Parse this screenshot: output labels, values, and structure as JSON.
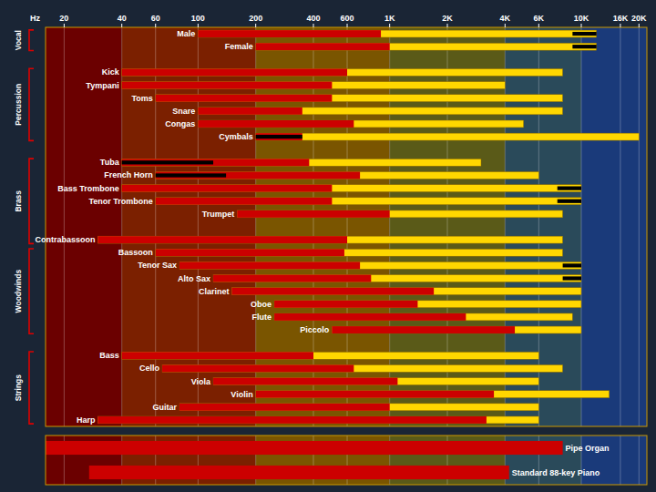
{
  "chart_data": [
    {
      "type": "bar",
      "orientation": "horizontal",
      "log": "x",
      "x_label": "Hz",
      "xlim": [
        16,
        22000
      ],
      "xticks": [
        20,
        40,
        60,
        100,
        200,
        400,
        600,
        {
          "value": 1000,
          "label": "1K"
        },
        {
          "value": 2000,
          "label": "2K"
        },
        {
          "value": 4000,
          "label": "4K"
        },
        {
          "value": 6000,
          "label": "6K"
        },
        {
          "value": 10000,
          "label": "10K"
        },
        {
          "value": 16000,
          "label": "16K"
        },
        {
          "value": 20000,
          "label": "20K"
        }
      ],
      "grid": true,
      "categories": [
        "Male",
        "Female",
        null,
        "Kick",
        "Tympani",
        "Toms",
        "Snare",
        "Congas",
        "Cymbals",
        null,
        "Tuba",
        "French Horn",
        "Bass Trombone",
        "Tenor Trombone",
        "Trumpet",
        null,
        "Contrabassoon",
        "Bassoon",
        "Tenor Sax",
        "Alto Sax",
        "Clarinet",
        "Oboe",
        "Flute",
        "Piccolo",
        null,
        "Bass",
        "Cello",
        "Viola",
        "Violin",
        "Guitar",
        "Harp"
      ],
      "series": [
        {
          "color": "#FFD700",
          "low": [
            100,
            200,
            null,
            40,
            40,
            60,
            100,
            100,
            200,
            null,
            40,
            60,
            40,
            60,
            160,
            null,
            30,
            60,
            80,
            120,
            150,
            250,
            250,
            500,
            null,
            40,
            65,
            120,
            200,
            80,
            30
          ],
          "values": [
            12000,
            12000,
            null,
            8000,
            4000,
            8000,
            8000,
            5000,
            20000,
            null,
            3000,
            6000,
            10000,
            10000,
            8000,
            null,
            8000,
            8000,
            10000,
            10000,
            10000,
            10000,
            9000,
            10000,
            null,
            6000,
            8000,
            6000,
            14000,
            6000,
            6000
          ]
        },
        {
          "color": "#CC0000",
          "low": [
            100,
            200,
            null,
            40,
            40,
            60,
            100,
            100,
            200,
            null,
            40,
            60,
            40,
            60,
            160,
            null,
            30,
            60,
            80,
            120,
            150,
            250,
            250,
            500,
            null,
            40,
            65,
            120,
            200,
            80,
            30
          ],
          "values": [
            900,
            1000,
            null,
            600,
            500,
            500,
            350,
            650,
            350,
            null,
            380,
            700,
            500,
            500,
            1000,
            null,
            600,
            580,
            700,
            800,
            1700,
            1400,
            2500,
            4500,
            null,
            400,
            650,
            1100,
            3500,
            1000,
            3200
          ]
        },
        {
          "color": "#000000",
          "low": [
            9000,
            9000,
            null,
            null,
            null,
            null,
            null,
            null,
            200,
            null,
            40,
            60,
            7500,
            7500,
            null,
            null,
            null,
            null,
            8000,
            8000,
            null,
            null,
            null,
            null,
            null,
            null,
            null,
            null,
            null,
            null,
            null
          ],
          "values": [
            12000,
            12000,
            null,
            null,
            null,
            null,
            null,
            null,
            350,
            null,
            120,
            140,
            10000,
            10000,
            null,
            null,
            null,
            null,
            10000,
            10000,
            null,
            null,
            null,
            null,
            null,
            null,
            null,
            null,
            null,
            null,
            null
          ]
        }
      ],
      "groups": [
        {
          "name": "Vocal",
          "members": [
            "Male",
            "Female"
          ]
        },
        {
          "name": "Percussion",
          "members": [
            "Kick",
            "Tympani",
            "Toms",
            "Snare",
            "Congas",
            "Cymbals"
          ]
        },
        {
          "name": "Brass",
          "members": [
            "Tuba",
            "French Horn",
            "Bass Trombone",
            "Tenor Trombone",
            "Trumpet",
            "Contrabassoon"
          ]
        },
        {
          "name": "Woodwinds",
          "members": [
            "Bassoon",
            "Tenor Sax",
            "Alto Sax",
            "Clarinet",
            "Oboe",
            "Flute",
            "Piccolo"
          ]
        },
        {
          "name": "Strings",
          "members": [
            "Bass",
            "Cello",
            "Viola",
            "Violin",
            "Guitar",
            "Harp"
          ]
        }
      ],
      "bands": [
        {
          "from": 16,
          "to": 40,
          "color": "#6B0000"
        },
        {
          "from": 40,
          "to": 200,
          "color": "#7B2000"
        },
        {
          "from": 200,
          "to": 1000,
          "color": "#7A5500"
        },
        {
          "from": 1000,
          "to": 4000,
          "color": "#5A5A18"
        },
        {
          "from": 4000,
          "to": 10000,
          "color": "#2A4A5A"
        },
        {
          "from": 10000,
          "to": 22000,
          "color": "#1A3A7A"
        }
      ]
    },
    {
      "type": "bar",
      "orientation": "horizontal",
      "log": "x",
      "xlim": [
        16,
        22000
      ],
      "xticks": [
        20,
        40,
        60,
        100,
        200,
        400,
        600,
        1000,
        2000,
        4000,
        6000,
        10000,
        16000,
        20000
      ],
      "tick_labels": false,
      "grid": true,
      "categories": [
        "Pipe Organ",
        "Standard 88-key Piano"
      ],
      "series": [
        {
          "color": "#CC0000",
          "low": [
            16,
            27
          ],
          "values": [
            8000,
            4200
          ]
        }
      ],
      "bands": [
        {
          "from": 16,
          "to": 40,
          "color": "#6B0000"
        },
        {
          "from": 40,
          "to": 200,
          "color": "#7B2000"
        },
        {
          "from": 200,
          "to": 1000,
          "color": "#7A5500"
        },
        {
          "from": 1000,
          "to": 4000,
          "color": "#5A5A18"
        },
        {
          "from": 4000,
          "to": 10000,
          "color": "#2A4A5A"
        },
        {
          "from": 10000,
          "to": 22000,
          "color": "#1A3A7A"
        }
      ]
    }
  ]
}
